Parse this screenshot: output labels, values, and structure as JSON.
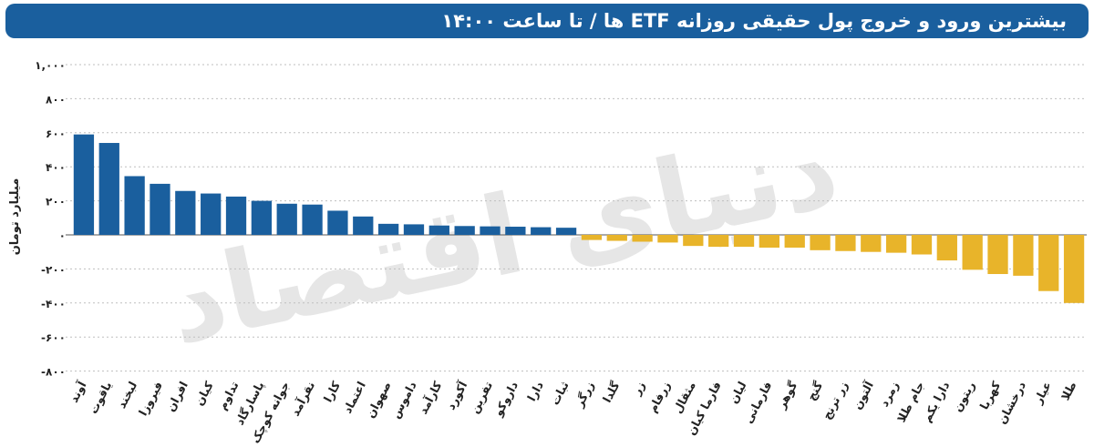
{
  "title": "بیشترین ورود و خروج پول حقیقی روزانه ETF ها / تا ساعت ۱۴:۰۰",
  "watermark": "دنیای اقتصاد",
  "colors": {
    "header": "#1a5f9e",
    "positive": "#1a5f9e",
    "negative": "#e8b42a",
    "grid": "#bfbfbf",
    "text": "#222222",
    "watermark": "#e6e6e6"
  },
  "chart_data": {
    "type": "bar",
    "ylabel": "میلیارد تومان",
    "ylim": [
      -800,
      1000
    ],
    "yticks": [
      1000,
      800,
      600,
      400,
      200,
      0,
      -200,
      -400,
      -600,
      -800
    ],
    "ytick_labels": [
      "۱,۰۰۰",
      "۸۰۰",
      "۶۰۰",
      "۴۰۰",
      "۲۰۰",
      "۰",
      "-۲۰۰",
      "-۴۰۰",
      "-۶۰۰",
      "-۸۰۰"
    ],
    "grid": true,
    "categories": [
      "آوند",
      "یاقوت",
      "لبخند",
      "فیروزا",
      "افران",
      "کیان",
      "تداوم",
      "پاسارگاد",
      "جوانه کوچک",
      "نقرآمد",
      "کارا",
      "اعتماد",
      "صهوان",
      "داموس",
      "کارآمد",
      "آکورد",
      "تفرین",
      "داروکو",
      "دارا",
      "ثبات",
      "زرگر",
      "گلدا",
      "زر",
      "زرفام",
      "مثقال",
      "فارما کیان",
      "لیان",
      "فارمانی",
      "گوهر",
      "گنج",
      "زر ترنج",
      "آلتون",
      "زمرد",
      "جام طلا",
      "دارا یکم",
      "ریتون",
      "کهربا",
      "درخشان",
      "عیار",
      "طلا"
    ],
    "values": [
      590,
      540,
      345,
      300,
      258,
      243,
      225,
      200,
      183,
      178,
      142,
      108,
      65,
      62,
      55,
      52,
      50,
      48,
      45,
      42,
      -30,
      -35,
      -40,
      -45,
      -65,
      -70,
      -70,
      -75,
      -75,
      -90,
      -95,
      -100,
      -105,
      -115,
      -150,
      -205,
      -230,
      -240,
      -330,
      -400
    ]
  }
}
